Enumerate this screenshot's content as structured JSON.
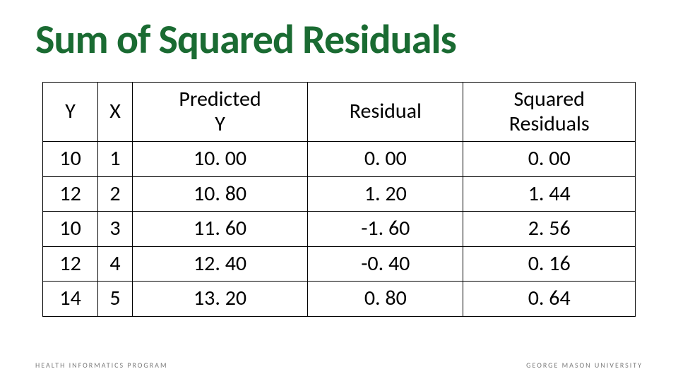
{
  "title": "Sum of Squared Residuals",
  "table": {
    "type": "table",
    "columns": [
      {
        "header_line1": "",
        "header_line2": "Y",
        "width_pct": 14
      },
      {
        "header_line1": "",
        "header_line2": "X",
        "width_pct": 14
      },
      {
        "header_line1": "Predicted",
        "header_line2": "Y",
        "width_pct": 24
      },
      {
        "header_line1": "",
        "header_line2": "Residual",
        "width_pct": 24
      },
      {
        "header_line1": "Squared",
        "header_line2": "Residuals",
        "width_pct": 24
      }
    ],
    "rows": [
      [
        "10",
        "1",
        "10. 00",
        "0. 00",
        "0. 00"
      ],
      [
        "12",
        "2",
        "10. 80",
        "1. 20",
        "1. 44"
      ],
      [
        "10",
        "3",
        "11. 60",
        "-1. 60",
        "2. 56"
      ],
      [
        "12",
        "4",
        "12. 40",
        "-0. 40",
        "0. 16"
      ],
      [
        "14",
        "5",
        "13. 20",
        "0. 80",
        "0. 64"
      ]
    ],
    "border_color": "#000000",
    "text_color": "#000000",
    "cell_fontsize": 30,
    "header_fontweight": 400
  },
  "footer": {
    "left": "HEALTH INFORMATICS PROGRAM",
    "right": "GEORGE MASON UNIVERSITY"
  },
  "colors": {
    "title_color": "#1a6b32",
    "background": "#ffffff",
    "footer_text": "#7a7a7a"
  }
}
